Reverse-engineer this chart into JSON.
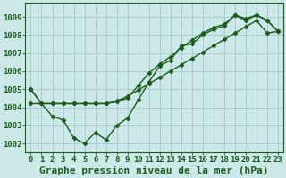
{
  "xlabel": "Graphe pression niveau de la mer (hPa)",
  "bg_color": "#cce8e8",
  "grid_color": "#aacccc",
  "line_color": "#1a5c1a",
  "text_color": "#1a5c1a",
  "x_ticks": [
    0,
    1,
    2,
    3,
    4,
    5,
    6,
    7,
    8,
    9,
    10,
    11,
    12,
    13,
    14,
    15,
    16,
    17,
    18,
    19,
    20,
    21,
    22,
    23
  ],
  "y_ticks": [
    1002,
    1003,
    1004,
    1005,
    1006,
    1007,
    1008,
    1009
  ],
  "ylim": [
    1001.5,
    1009.8
  ],
  "xlim": [
    -0.5,
    23.5
  ],
  "line1": [
    1005.0,
    1004.2,
    1003.5,
    1003.3,
    1002.3,
    1002.0,
    1002.6,
    1002.2,
    1003.0,
    1003.4,
    1004.4,
    1005.4,
    1006.3,
    1006.6,
    1007.4,
    1007.5,
    1008.0,
    1008.3,
    1008.5,
    1009.1,
    1008.8,
    1009.1,
    1008.8,
    1008.2
  ],
  "line2": [
    1005.0,
    1004.2,
    1004.2,
    1004.2,
    1004.2,
    1004.2,
    1004.2,
    1004.2,
    1004.3,
    1004.5,
    1005.2,
    1005.9,
    1006.4,
    1006.8,
    1007.3,
    1007.7,
    1008.1,
    1008.4,
    1008.6,
    1009.1,
    1008.9,
    1009.1,
    1008.8,
    1008.2
  ],
  "line3": [
    1004.2,
    1004.2,
    1004.2,
    1004.2,
    1004.2,
    1004.2,
    1004.2,
    1004.2,
    1004.35,
    1004.6,
    1004.95,
    1005.3,
    1005.65,
    1006.0,
    1006.35,
    1006.7,
    1007.05,
    1007.4,
    1007.75,
    1008.1,
    1008.45,
    1008.8,
    1008.1,
    1008.2
  ],
  "marker": "D",
  "markersize": 2.5,
  "linewidth": 1.0,
  "xlabel_fontsize": 8,
  "tick_fontsize": 6.5
}
